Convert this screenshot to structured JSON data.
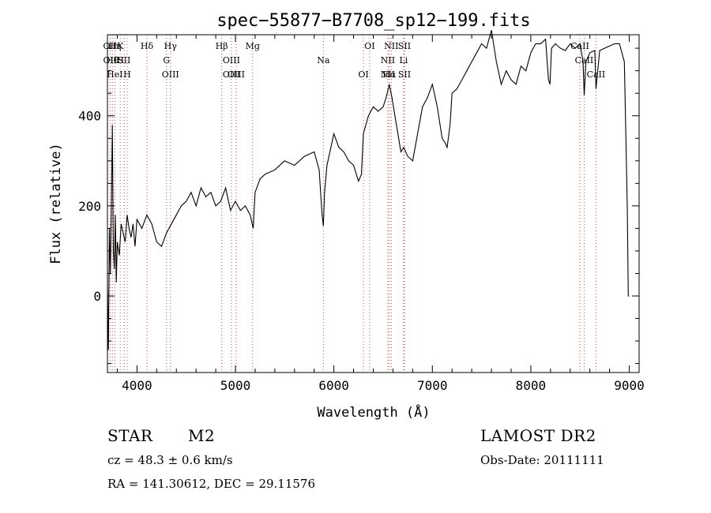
{
  "chart_data": {
    "type": "line",
    "title": "spec−55877−B7708_sp12−199.fits",
    "xlabel": "Wavelength (Å)",
    "ylabel": "Flux (relative)",
    "xlim": [
      3700,
      9100
    ],
    "ylim": [
      -170,
      580
    ],
    "x_ticks": [
      4000,
      5000,
      6000,
      7000,
      8000,
      9000
    ],
    "y_ticks": [
      0,
      200,
      400
    ],
    "grid": false,
    "legend": "none",
    "series": [
      {
        "x": [
          3700,
          3710,
          3720,
          3730,
          3740,
          3750,
          3760,
          3770,
          3780,
          3790,
          3800,
          3820,
          3840,
          3860,
          3880,
          3900,
          3920,
          3940,
          3960,
          3980,
          4000,
          4050,
          4100,
          4150,
          4200,
          4250,
          4300,
          4350,
          4400,
          4450,
          4500,
          4550,
          4600,
          4650,
          4700,
          4750,
          4800,
          4850,
          4900,
          4950,
          5000,
          5050,
          5100,
          5150,
          5180,
          5200,
          5250,
          5300,
          5400,
          5500,
          5600,
          5700,
          5800,
          5850,
          5880,
          5893,
          5905,
          5930,
          6000,
          6050,
          6100,
          6150,
          6200,
          6250,
          6280,
          6300,
          6350,
          6400,
          6450,
          6500,
          6530,
          6563,
          6590,
          6620,
          6650,
          6680,
          6710,
          6750,
          6800,
          6850,
          6900,
          6950,
          7000,
          7050,
          7100,
          7130,
          7150,
          7180,
          7200,
          7250,
          7300,
          7350,
          7400,
          7450,
          7500,
          7550,
          7600,
          7650,
          7680,
          7700,
          7750,
          7800,
          7850,
          7900,
          7950,
          8000,
          8050,
          8100,
          8150,
          8180,
          8195,
          8210,
          8250,
          8300,
          8350,
          8400,
          8450,
          8500,
          8530,
          8542,
          8560,
          8600,
          8650,
          8662,
          8700,
          8750,
          8800,
          8850,
          8900,
          8950,
          8980,
          8990,
          9000
        ],
        "y": [
          20,
          -120,
          150,
          50,
          200,
          380,
          100,
          60,
          180,
          30,
          120,
          90,
          160,
          140,
          120,
          180,
          150,
          130,
          160,
          110,
          170,
          150,
          180,
          160,
          120,
          110,
          140,
          160,
          180,
          200,
          210,
          230,
          200,
          240,
          220,
          230,
          200,
          210,
          240,
          190,
          210,
          190,
          200,
          180,
          150,
          230,
          260,
          270,
          280,
          300,
          290,
          310,
          320,
          280,
          180,
          155,
          230,
          290,
          360,
          330,
          320,
          300,
          290,
          255,
          270,
          360,
          400,
          420,
          410,
          420,
          440,
          470,
          440,
          400,
          360,
          320,
          330,
          310,
          300,
          360,
          420,
          440,
          470,
          420,
          350,
          340,
          330,
          380,
          450,
          460,
          480,
          500,
          520,
          540,
          560,
          550,
          590,
          520,
          490,
          470,
          500,
          480,
          470,
          510,
          500,
          540,
          560,
          560,
          570,
          480,
          470,
          550,
          560,
          550,
          545,
          560,
          550,
          560,
          520,
          445,
          520,
          540,
          545,
          460,
          545,
          550,
          555,
          560,
          560,
          520,
          200,
          0,
          0
        ]
      }
    ],
    "lines": [
      {
        "x": 3727,
        "labels": [
          "OII",
          "OII"
        ]
      },
      {
        "x": 3750,
        "labels": [
          "Hθ"
        ]
      },
      {
        "x": 3775,
        "labels": [
          "HeI",
          "Hη"
        ]
      },
      {
        "x": 3830,
        "labels": [
          "K",
          "H"
        ]
      },
      {
        "x": 3870,
        "labels": [
          "SII"
        ]
      },
      {
        "x": 3900,
        "labels": [
          "H"
        ]
      },
      {
        "x": 4101,
        "labels": [
          "Hδ"
        ]
      },
      {
        "x": 4300,
        "labels": [
          "G"
        ]
      },
      {
        "x": 4340,
        "labels": [
          "OIII",
          "Hγ"
        ]
      },
      {
        "x": 4861,
        "labels": [
          "Hβ"
        ]
      },
      {
        "x": 4959,
        "labels": [
          "OIII",
          "OIII"
        ]
      },
      {
        "x": 5007,
        "labels": [
          "OIII"
        ]
      },
      {
        "x": 5175,
        "labels": [
          "Mg"
        ]
      },
      {
        "x": 5893,
        "labels": [
          "Na"
        ]
      },
      {
        "x": 6300,
        "labels": [
          "OI"
        ]
      },
      {
        "x": 6363,
        "labels": [
          "OI"
        ]
      },
      {
        "x": 6548,
        "labels": [
          "NII",
          "NII"
        ]
      },
      {
        "x": 6563,
        "labels": [
          "Hα"
        ]
      },
      {
        "x": 6583,
        "labels": [
          "NII"
        ]
      },
      {
        "x": 6708,
        "labels": [
          "Li"
        ]
      },
      {
        "x": 6717,
        "labels": [
          "SII",
          "SII"
        ]
      },
      {
        "x": 8498,
        "labels": [
          "CaII"
        ]
      },
      {
        "x": 8542,
        "labels": [
          "CaII"
        ]
      },
      {
        "x": 8662,
        "labels": [
          "CaII"
        ]
      }
    ],
    "colors": {
      "line": "#000000",
      "marker": "#d04040"
    }
  },
  "info": {
    "class": "STAR",
    "subclass": "M2",
    "survey": "LAMOST DR2",
    "cz": "cz = 48.3 ± 0.6 km/s",
    "obs_date": "Obs-Date: 20111111",
    "coords": "RA = 141.30612, DEC =  29.11576"
  }
}
